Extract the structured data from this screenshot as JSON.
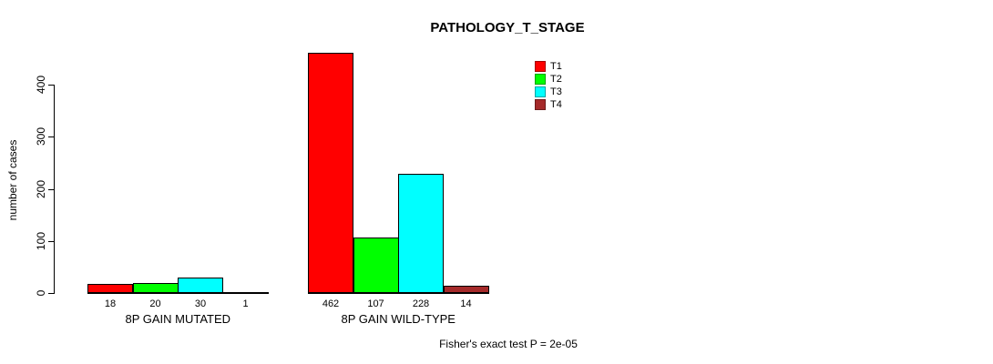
{
  "chart_data": {
    "type": "bar",
    "title": "PATHOLOGY_T_STAGE",
    "ylabel": "number of cases",
    "xlabel": "",
    "categories": [
      "8P GAIN MUTATED",
      "8P GAIN WILD-TYPE"
    ],
    "series": [
      {
        "name": "T1",
        "color": "#ff0000",
        "values": [
          18,
          462
        ]
      },
      {
        "name": "T2",
        "color": "#00ff00",
        "values": [
          20,
          107
        ]
      },
      {
        "name": "T3",
        "color": "#00ffff",
        "values": [
          30,
          228
        ]
      },
      {
        "name": "T4",
        "color": "#a52a2a",
        "values": [
          1,
          14
        ]
      }
    ],
    "yticks": [
      0,
      100,
      200,
      300,
      400
    ],
    "ylim": [
      0,
      465
    ],
    "grid": false,
    "legend_position": "top-right",
    "legend_entries": [
      "T1",
      "T2",
      "T3",
      "T4"
    ],
    "annotation": "Fisher's exact test P = 2e-05"
  }
}
